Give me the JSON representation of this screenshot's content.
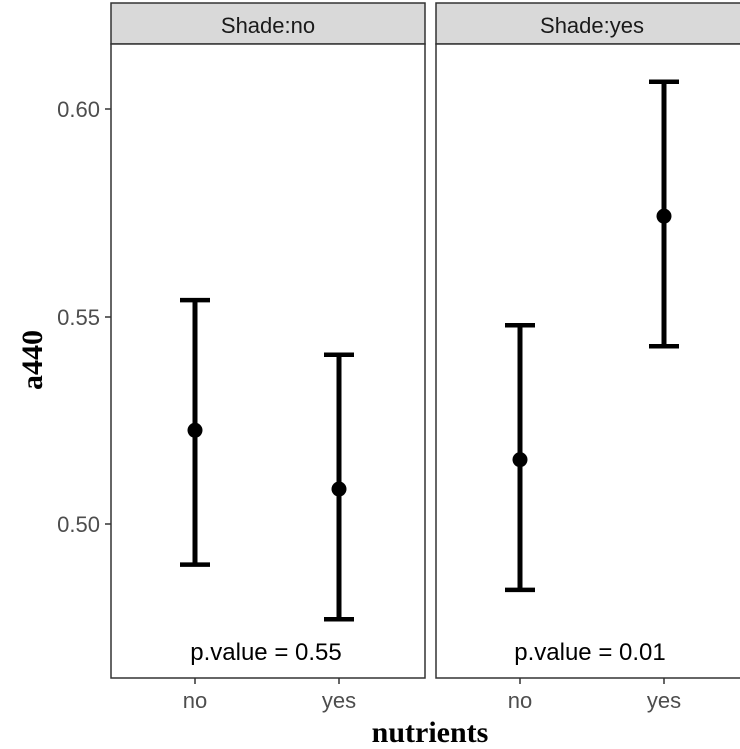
{
  "chart_data": {
    "type": "errorbar",
    "facet_variable": "Shade",
    "xlabel": "nutrients",
    "ylabel": "a440",
    "categories": [
      "no",
      "yes"
    ],
    "ylim": [
      0.467,
      0.618
    ],
    "yticks": [
      0.5,
      0.55,
      0.6
    ],
    "ytick_labels": [
      "0.50",
      "0.55",
      "0.60"
    ],
    "grid": false,
    "panels": [
      {
        "strip_label": "Shade:no",
        "annotation": "p.value = 0.55",
        "points": [
          {
            "x": "no",
            "mean": 0.526,
            "lower": 0.494,
            "upper": 0.557
          },
          {
            "x": "yes",
            "mean": 0.512,
            "lower": 0.481,
            "upper": 0.544
          }
        ]
      },
      {
        "strip_label": "Shade:yes",
        "annotation": "p.value = 0.01",
        "points": [
          {
            "x": "no",
            "mean": 0.519,
            "lower": 0.488,
            "upper": 0.551
          },
          {
            "x": "yes",
            "mean": 0.577,
            "lower": 0.546,
            "upper": 0.609
          }
        ]
      }
    ],
    "colors": {
      "strip_fill": "#d9d9d9",
      "frame": "#333333",
      "marks": "#000000",
      "tick_text": "#4d4d4d"
    }
  }
}
